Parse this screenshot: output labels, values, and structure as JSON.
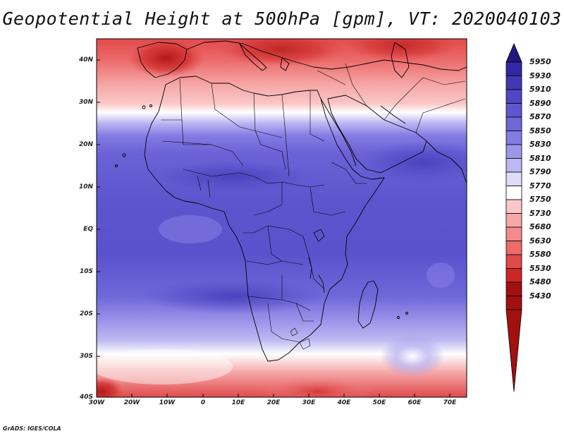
{
  "title": "Geopotential Height at 500hPa [gpm], VT: 2020040103",
  "footer": "GrADS: IGES/COLA",
  "colors": {
    "scale": [
      "#a31010",
      "#cc2626",
      "#e04a4a",
      "#ec6b6b",
      "#f28b8b",
      "#f6a8a8",
      "#fac6c6",
      "#ffffff",
      "#dedcf8",
      "#bdb7f2",
      "#9d96ea",
      "#837ce3",
      "#6f68d9",
      "#5f57cf",
      "#5048c3",
      "#4039b6",
      "#3128a3",
      "#23177f"
    ],
    "coast": "#000000"
  },
  "map": {
    "lon_labels": [
      "30W",
      "20W",
      "10W",
      "0",
      "10E",
      "20E",
      "30E",
      "40E",
      "50E",
      "60E",
      "70E"
    ],
    "lat_labels": [
      "40N",
      "30N",
      "20N",
      "10N",
      "EQ",
      "10S",
      "20S",
      "30S",
      "40S"
    ]
  },
  "colorbar": {
    "labels": [
      "5950",
      "5930",
      "5910",
      "5890",
      "5870",
      "5850",
      "5830",
      "5810",
      "5790",
      "5770",
      "5750",
      "5730",
      "5680",
      "5630",
      "5580",
      "5530",
      "5480",
      "5430"
    ]
  }
}
